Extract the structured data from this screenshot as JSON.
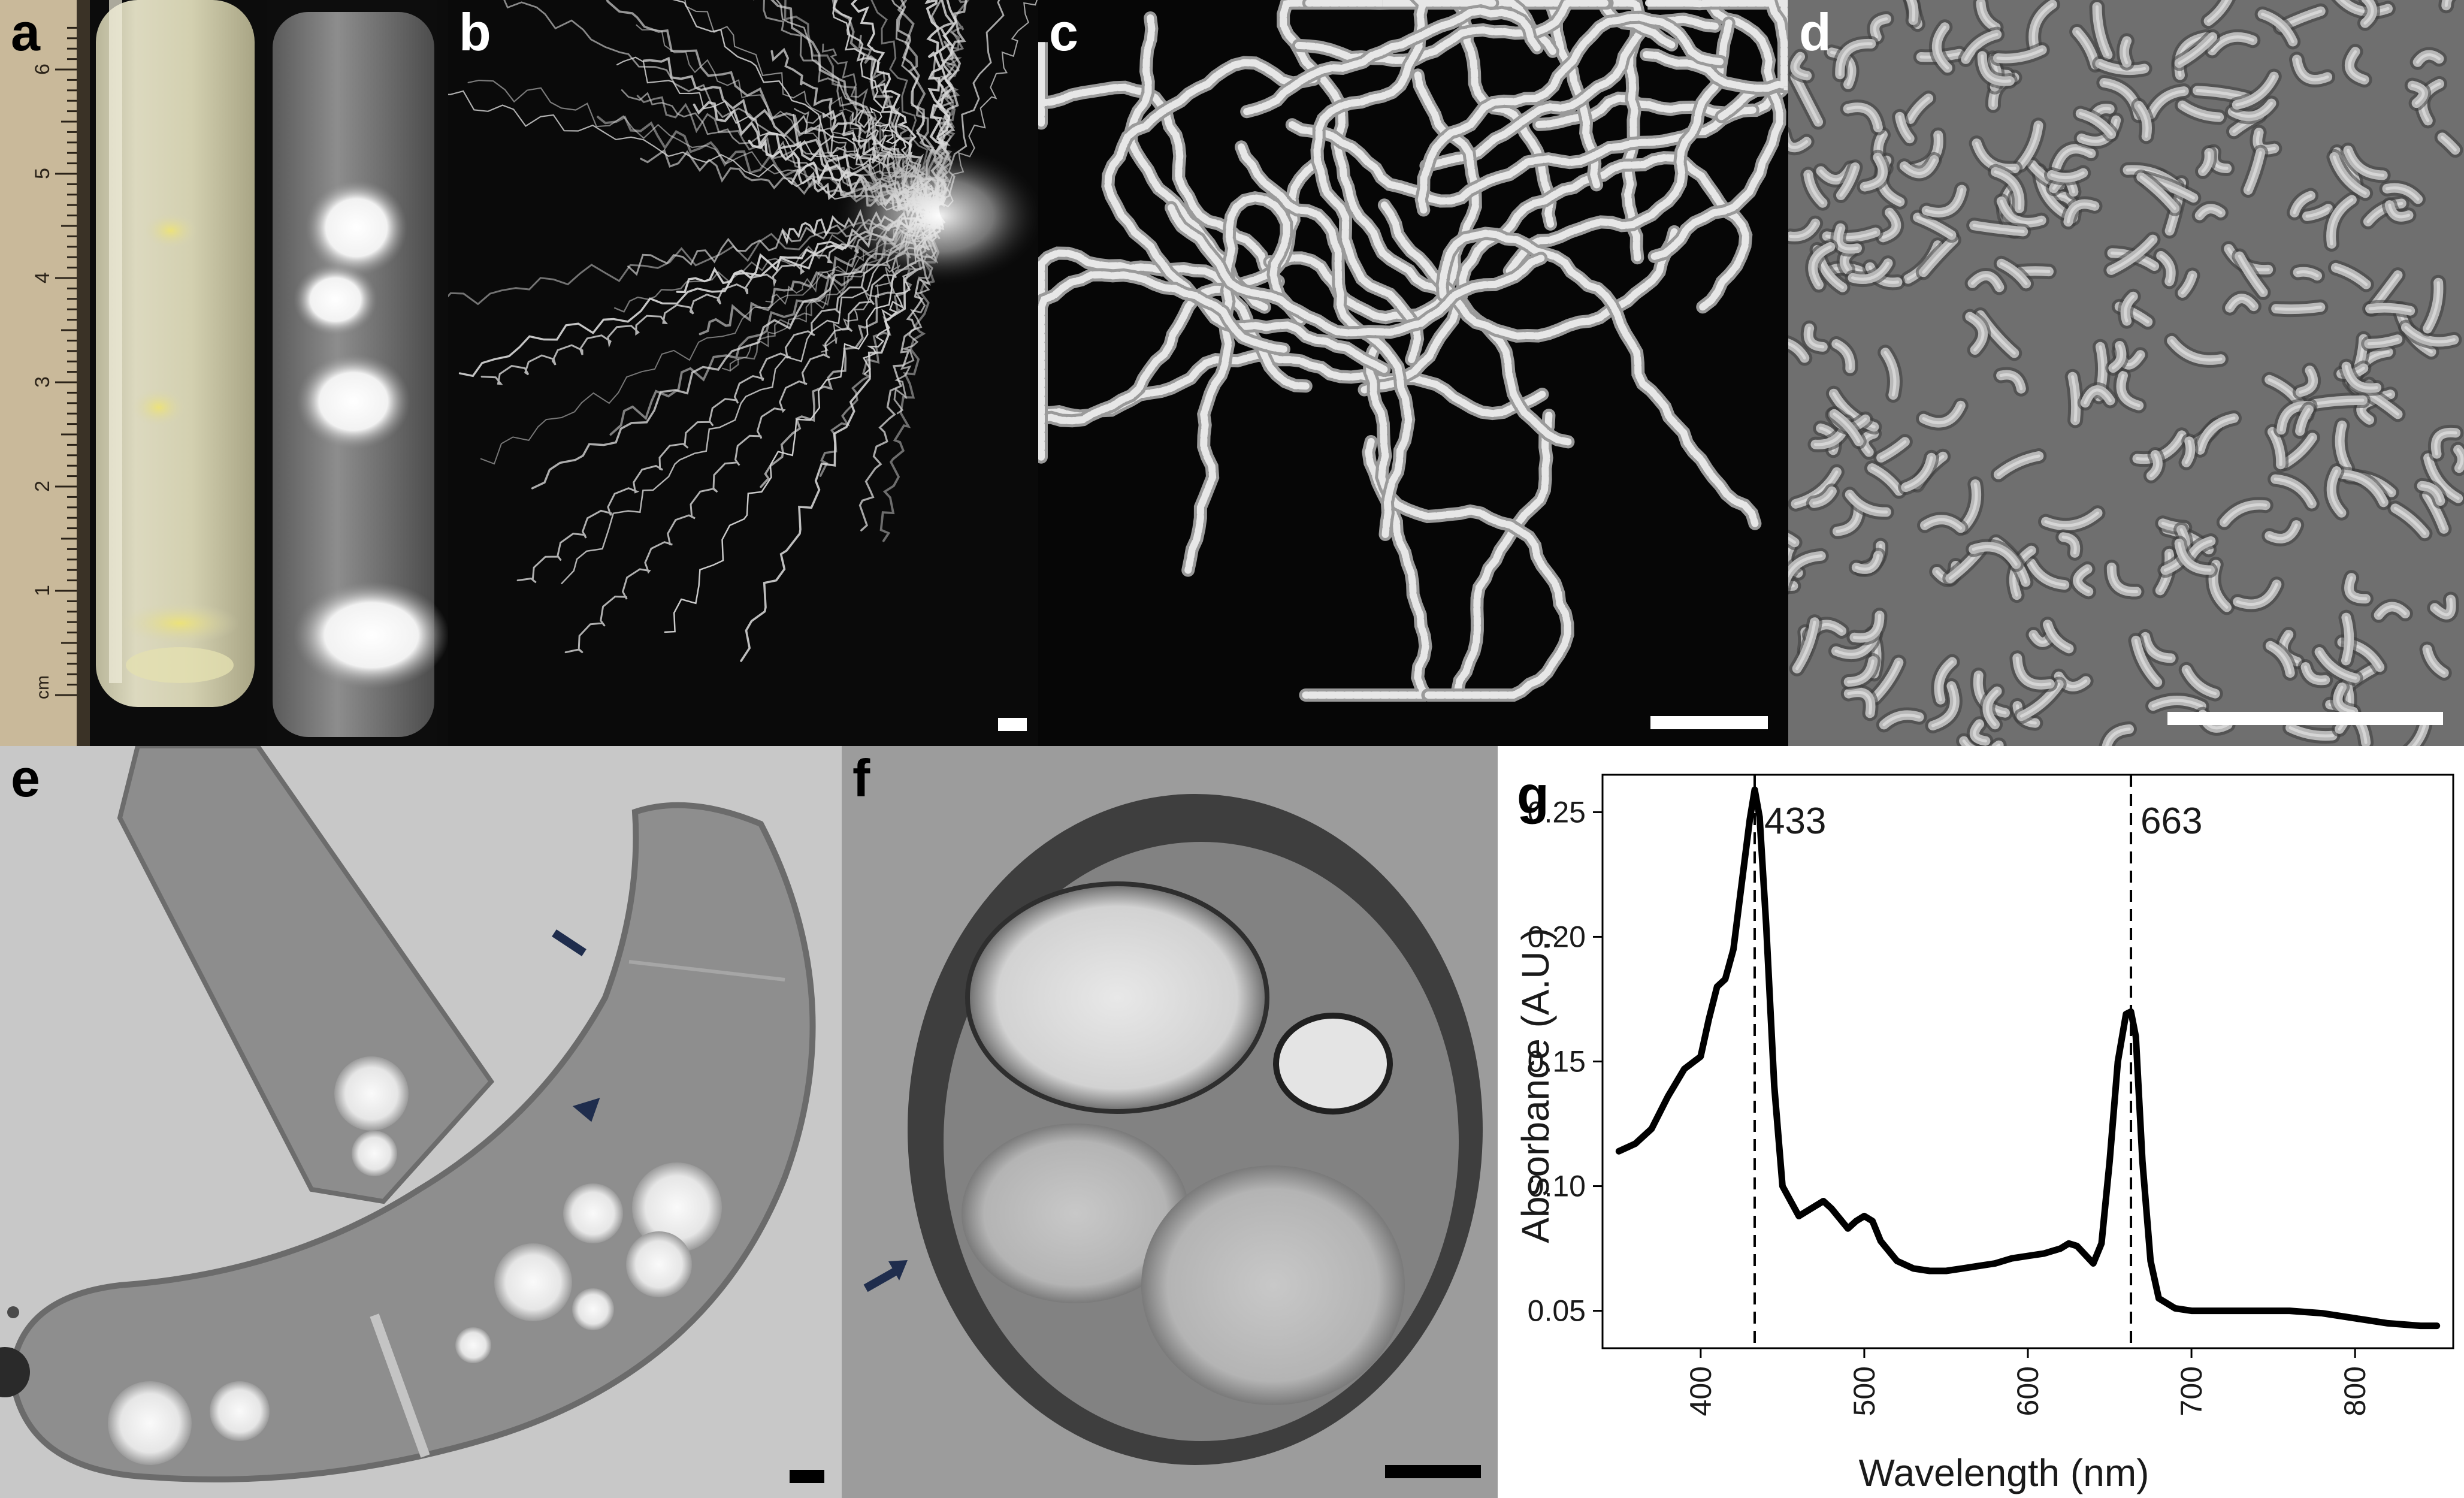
{
  "figure": {
    "panels": [
      {
        "id": "a",
        "label": "a",
        "ruler": {
          "unit": "cm",
          "ticks": [
            "1",
            "2",
            "3",
            "4",
            "5",
            "6"
          ]
        }
      },
      {
        "id": "b",
        "label": "b"
      },
      {
        "id": "c",
        "label": "c"
      },
      {
        "id": "d",
        "label": "d"
      },
      {
        "id": "e",
        "label": "e"
      },
      {
        "id": "f",
        "label": "f"
      },
      {
        "id": "g",
        "label": "g"
      }
    ]
  },
  "chart_data": {
    "type": "line",
    "xlabel": "Wavelength (nm)",
    "ylabel": "Absorbance (A.U.)",
    "xlim": [
      340,
      860
    ],
    "ylim": [
      0.035,
      0.265
    ],
    "xticks": [
      400,
      500,
      600,
      700,
      800
    ],
    "yticks": [
      0.05,
      0.1,
      0.15,
      0.2,
      0.25
    ],
    "ytick_labels": [
      "0.05",
      "0.10",
      "0.15",
      "0.20",
      "0.25"
    ],
    "grid": false,
    "annotations": [
      {
        "x": 433,
        "label": "433",
        "style": "dashed-vertical"
      },
      {
        "x": 663,
        "label": "663",
        "style": "dashed-vertical"
      }
    ],
    "x": [
      350,
      360,
      370,
      380,
      390,
      400,
      405,
      410,
      415,
      420,
      425,
      430,
      433,
      436,
      440,
      445,
      450,
      460,
      470,
      475,
      480,
      490,
      495,
      500,
      505,
      510,
      520,
      530,
      540,
      550,
      560,
      570,
      580,
      590,
      600,
      610,
      620,
      625,
      630,
      640,
      645,
      650,
      655,
      660,
      663,
      666,
      670,
      675,
      680,
      690,
      700,
      720,
      740,
      760,
      780,
      800,
      820,
      840,
      850
    ],
    "values": [
      0.114,
      0.117,
      0.123,
      0.136,
      0.147,
      0.152,
      0.167,
      0.18,
      0.183,
      0.195,
      0.221,
      0.247,
      0.259,
      0.248,
      0.205,
      0.14,
      0.1,
      0.088,
      0.092,
      0.094,
      0.091,
      0.083,
      0.086,
      0.088,
      0.086,
      0.078,
      0.07,
      0.067,
      0.066,
      0.066,
      0.067,
      0.068,
      0.069,
      0.071,
      0.072,
      0.073,
      0.075,
      0.077,
      0.076,
      0.069,
      0.077,
      0.11,
      0.15,
      0.169,
      0.17,
      0.16,
      0.11,
      0.07,
      0.055,
      0.051,
      0.05,
      0.05,
      0.05,
      0.05,
      0.049,
      0.047,
      0.045,
      0.044,
      0.044
    ]
  },
  "colors": {
    "spectrum_line": "#000000",
    "arrow": "#1f2d4d",
    "culture_medium": "#d8d5b3",
    "cell_bands": "#e3df8a"
  }
}
